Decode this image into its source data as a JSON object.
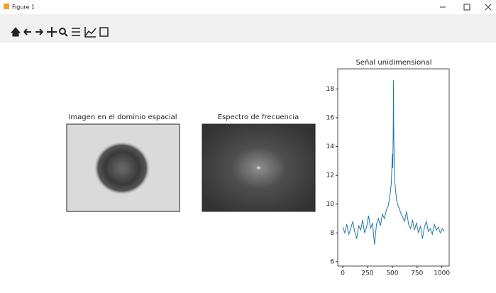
{
  "window": {
    "title": "Figure 1"
  },
  "panels": [
    {
      "title": "Imagen en el dominio espacial"
    },
    {
      "title": "Espectro de frecuencia"
    }
  ],
  "chart_data": {
    "type": "line",
    "title": "Señal unidimensional",
    "color": "#1f77b4",
    "x": [
      0,
      20,
      40,
      60,
      80,
      100,
      120,
      140,
      160,
      180,
      200,
      220,
      240,
      260,
      280,
      300,
      320,
      340,
      360,
      380,
      400,
      420,
      440,
      460,
      480,
      490,
      500,
      505,
      510,
      512,
      514,
      519,
      524,
      534,
      544,
      564,
      584,
      604,
      624,
      644,
      664,
      684,
      704,
      724,
      744,
      764,
      784,
      804,
      824,
      844,
      864,
      884,
      904,
      924,
      944,
      964,
      984,
      1004,
      1023
    ],
    "values": [
      8.4,
      8.0,
      8.6,
      7.9,
      8.3,
      8.8,
      8.1,
      7.6,
      8.5,
      8.2,
      8.9,
      8.0,
      8.4,
      9.2,
      8.3,
      8.7,
      7.2,
      8.6,
      9.0,
      8.5,
      9.3,
      9.0,
      9.6,
      9.9,
      10.8,
      11.5,
      13.5,
      12.5,
      16.0,
      18.6,
      15.5,
      12.8,
      11.6,
      10.9,
      10.2,
      9.8,
      9.4,
      9.1,
      8.8,
      9.5,
      8.6,
      8.3,
      8.9,
      8.2,
      8.7,
      8.0,
      8.5,
      7.6,
      8.4,
      8.8,
      8.1,
      8.3,
      7.9,
      8.6,
      8.2,
      8.4,
      8.0,
      8.3,
      8.1
    ],
    "xlim": [
      -51.15,
      1074.15
    ],
    "xticks": [
      0,
      250,
      500,
      750,
      1000
    ],
    "ylim": [
      5.7,
      19.4
    ],
    "yticks": [
      6,
      8,
      10,
      12,
      14,
      16,
      18
    ]
  }
}
